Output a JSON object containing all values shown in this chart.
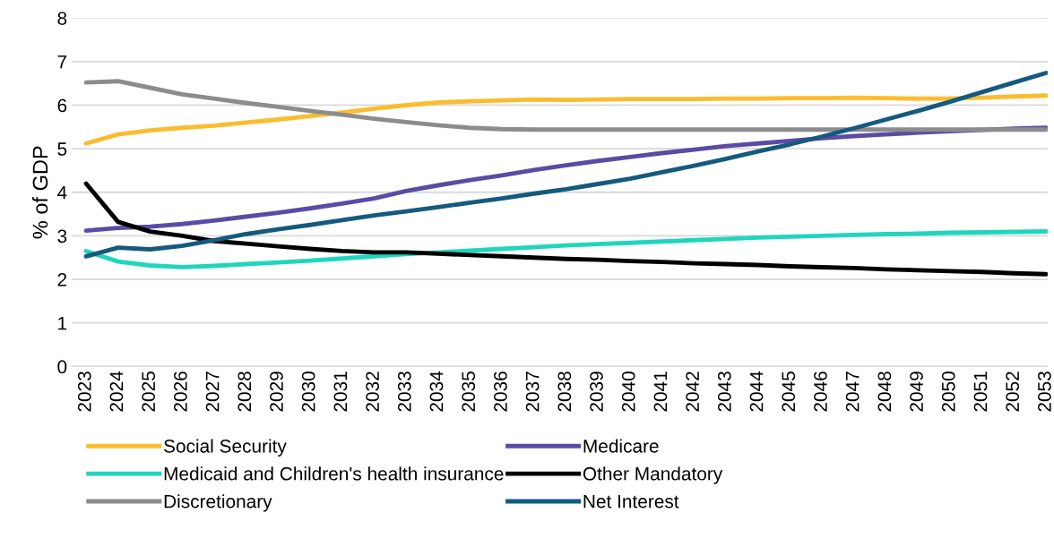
{
  "chart_data": {
    "type": "line",
    "ylabel": "% of GDP",
    "categories": [
      "2023",
      "2024",
      "2025",
      "2026",
      "2027",
      "2028",
      "2029",
      "2030",
      "2031",
      "2032",
      "2033",
      "2034",
      "2035",
      "2036",
      "2037",
      "2038",
      "2039",
      "2040",
      "2041",
      "2042",
      "2043",
      "2044",
      "2045",
      "2046",
      "2047",
      "2048",
      "2049",
      "2050",
      "2051",
      "2052",
      "2053"
    ],
    "series": [
      {
        "name": "Social Security",
        "color": "#fbbc2d",
        "values": [
          5.12,
          5.33,
          5.42,
          5.48,
          5.53,
          5.6,
          5.67,
          5.75,
          5.83,
          5.92,
          6.0,
          6.06,
          6.09,
          6.11,
          6.13,
          6.12,
          6.13,
          6.14,
          6.14,
          6.14,
          6.15,
          6.15,
          6.16,
          6.16,
          6.17,
          6.16,
          6.15,
          6.15,
          6.17,
          6.2,
          6.22
        ]
      },
      {
        "name": "Medicare",
        "color": "#5b4ba5",
        "values": [
          3.12,
          3.18,
          3.21,
          3.27,
          3.35,
          3.44,
          3.53,
          3.63,
          3.74,
          3.86,
          4.03,
          4.16,
          4.28,
          4.39,
          4.51,
          4.62,
          4.72,
          4.81,
          4.9,
          4.98,
          5.06,
          5.12,
          5.18,
          5.24,
          5.29,
          5.33,
          5.37,
          5.4,
          5.43,
          5.46,
          5.48
        ]
      },
      {
        "name": "Medicaid and Children's health insurance",
        "color": "#1fd6bd",
        "values": [
          2.65,
          2.41,
          2.32,
          2.28,
          2.31,
          2.35,
          2.39,
          2.43,
          2.48,
          2.53,
          2.58,
          2.62,
          2.66,
          2.7,
          2.74,
          2.78,
          2.81,
          2.84,
          2.87,
          2.9,
          2.93,
          2.96,
          2.98,
          3.0,
          3.02,
          3.04,
          3.05,
          3.07,
          3.08,
          3.09,
          3.1
        ]
      },
      {
        "name": "Other Mandatory",
        "color": "#000000",
        "values": [
          4.2,
          3.32,
          3.1,
          3.0,
          2.88,
          2.82,
          2.76,
          2.7,
          2.65,
          2.62,
          2.62,
          2.59,
          2.56,
          2.53,
          2.5,
          2.47,
          2.45,
          2.42,
          2.4,
          2.37,
          2.35,
          2.33,
          2.3,
          2.28,
          2.26,
          2.23,
          2.21,
          2.19,
          2.17,
          2.14,
          2.12
        ]
      },
      {
        "name": "Discretionary",
        "color": "#8c8c8c",
        "values": [
          6.52,
          6.55,
          6.4,
          6.25,
          6.15,
          6.05,
          5.96,
          5.87,
          5.78,
          5.69,
          5.61,
          5.54,
          5.48,
          5.45,
          5.44,
          5.44,
          5.44,
          5.44,
          5.44,
          5.44,
          5.44,
          5.44,
          5.44,
          5.44,
          5.44,
          5.44,
          5.44,
          5.44,
          5.44,
          5.44,
          5.44
        ]
      },
      {
        "name": "Net Interest",
        "color": "#155a7e",
        "values": [
          2.53,
          2.73,
          2.69,
          2.77,
          2.9,
          3.04,
          3.15,
          3.25,
          3.36,
          3.47,
          3.56,
          3.66,
          3.76,
          3.86,
          3.97,
          4.07,
          4.19,
          4.31,
          4.46,
          4.61,
          4.77,
          4.94,
          5.1,
          5.28,
          5.47,
          5.67,
          5.87,
          6.08,
          6.3,
          6.52,
          6.74
        ]
      }
    ],
    "ylim": [
      0,
      8
    ],
    "yticks": [
      0,
      1,
      2,
      3,
      4,
      5,
      6,
      7,
      8
    ],
    "grid": "y",
    "legend": "bottom",
    "marker": "none",
    "line_style": "solid"
  }
}
